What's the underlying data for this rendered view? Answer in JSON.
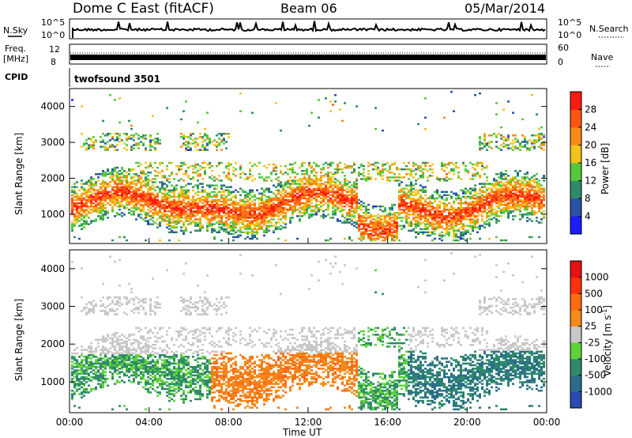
{
  "header": {
    "station": "Dome C East (fitACF)",
    "beam": "Beam 06",
    "date": "05/Mar/2014"
  },
  "nsky_panel": {
    "label": "N.Sky",
    "right_label": "N.Search",
    "left_ticks": [
      "10^5",
      "10^0"
    ],
    "right_ticks": [
      "10^5",
      "10^0"
    ]
  },
  "freq_panel": {
    "label_line1": "Freq.",
    "label_line2": "[MHz]",
    "right_label": "Nave",
    "left_ticks": [
      "12",
      "8"
    ],
    "right_ticks": [
      "60",
      "0"
    ]
  },
  "cpid_panel": {
    "label": "CPID",
    "program": "twofsound 3501"
  },
  "x_axis": {
    "label": "Time UT",
    "ticks": [
      "00:00",
      "04:00",
      "08:00",
      "12:00",
      "16:00",
      "20:00",
      "00:00"
    ]
  },
  "chart_data": [
    {
      "type": "heatmap",
      "name": "power",
      "ylabel": "Slant Range [km]",
      "y_ticks": [
        1000,
        2000,
        3000,
        4000
      ],
      "ylim": [
        180,
        4500
      ],
      "xlim_hours": [
        0,
        24
      ],
      "colorbar": {
        "label": "Power [dB]",
        "tick_labels": [
          "4",
          "8",
          "12",
          "16",
          "20",
          "24",
          "28"
        ],
        "colors": [
          "#1c1cff",
          "#2a52a8",
          "#2e8a6a",
          "#55c83a",
          "#f3c31a",
          "#ff8a1a",
          "#ff5510",
          "#ff1a10"
        ]
      }
    },
    {
      "type": "heatmap",
      "name": "velocity",
      "ylabel": "Slant Range [km]",
      "y_ticks": [
        1000,
        2000,
        3000,
        4000
      ],
      "ylim": [
        180,
        4500
      ],
      "xlim_hours": [
        0,
        24
      ],
      "colorbar": {
        "label": "Velocity [m s^-1]",
        "tick_labels": [
          "1000",
          "500",
          "100",
          "25",
          "-25",
          "-100",
          "-500",
          "-1000"
        ],
        "colors": [
          "#2a4ab0",
          "#2a6e8a",
          "#2e8a6a",
          "#5fd23a",
          "#c8c8c8",
          "#f38a1a",
          "#ff6a10",
          "#ff3010",
          "#e81010"
        ]
      }
    }
  ]
}
